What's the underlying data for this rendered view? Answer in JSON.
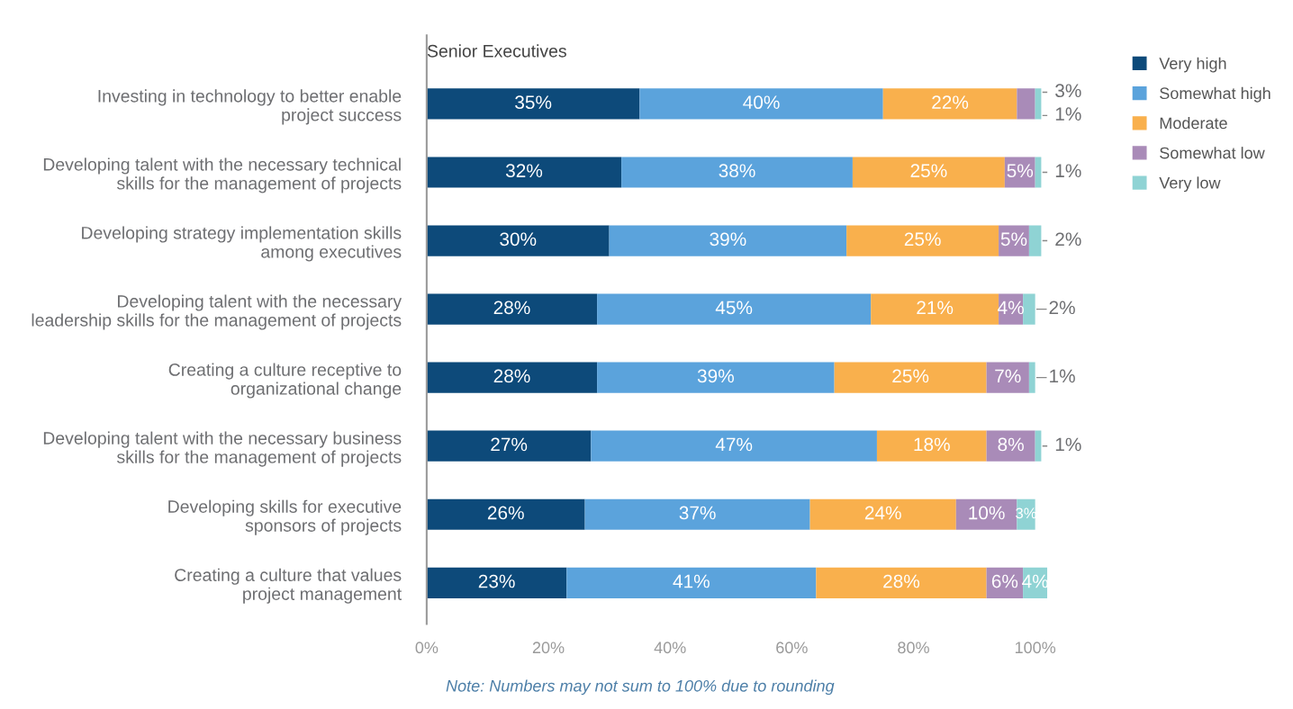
{
  "chart_data": {
    "type": "bar",
    "orientation": "horizontal",
    "stacked": true,
    "title": "Senior Executives",
    "categories": [
      "Investing in technology to better enable\nproject success",
      "Developing talent with the necessary technical\nskills for the management of projects",
      "Developing strategy implementation skills\namong executives",
      "Developing talent with the necessary\nleadership skills for the management of projects",
      "Creating a culture receptive to\norganizational change",
      "Developing talent with the necessary business\nskills for the management of projects",
      "Developing skills for executive\nsponsors of projects",
      "Creating a culture that values\nproject management"
    ],
    "series": [
      {
        "name": "Very high",
        "color": "#0d4a7a",
        "values": [
          35,
          32,
          30,
          28,
          28,
          27,
          26,
          23
        ],
        "value_labels": [
          "35%",
          "32%",
          "30%",
          "28%",
          "28%",
          "27%",
          "26%",
          "23%"
        ]
      },
      {
        "name": "Somewhat high",
        "color": "#5ba3dc",
        "values": [
          40,
          38,
          39,
          45,
          39,
          47,
          37,
          41
        ],
        "value_labels": [
          "40%",
          "38%",
          "39%",
          "45%",
          "39%",
          "47%",
          "37%",
          "41%"
        ]
      },
      {
        "name": "Moderate",
        "color": "#f9b04d",
        "values": [
          22,
          25,
          25,
          21,
          25,
          18,
          24,
          28
        ],
        "value_labels": [
          "22%",
          "25%",
          "25%",
          "21%",
          "25%",
          "18%",
          "24%",
          "28%"
        ]
      },
      {
        "name": "Somewhat low",
        "color": "#a98bb8",
        "values": [
          3,
          5,
          5,
          4,
          7,
          8,
          10,
          6
        ],
        "value_labels": [
          "3%",
          "5%",
          "5%",
          "4%",
          "7%",
          "8%",
          "10%",
          "6%"
        ]
      },
      {
        "name": "Very low",
        "color": "#8fd3d4",
        "values": [
          1,
          1,
          2,
          2,
          1,
          1,
          3,
          4
        ],
        "value_labels": [
          "1%",
          "1%",
          "2%",
          "2%",
          "1%",
          "1%",
          "3%",
          "4%"
        ]
      }
    ],
    "xlim": [
      0,
      102
    ],
    "xticks": [
      {
        "value": 0,
        "label": "0%"
      },
      {
        "value": 20,
        "label": "20%"
      },
      {
        "value": 40,
        "label": "40%"
      },
      {
        "value": 60,
        "label": "60%"
      },
      {
        "value": 80,
        "label": "80%"
      },
      {
        "value": 100,
        "label": "100%"
      }
    ],
    "legend": "top right",
    "grid": false,
    "annotations": [
      "Note: Numbers may not sum to 100% due to rounding"
    ]
  }
}
